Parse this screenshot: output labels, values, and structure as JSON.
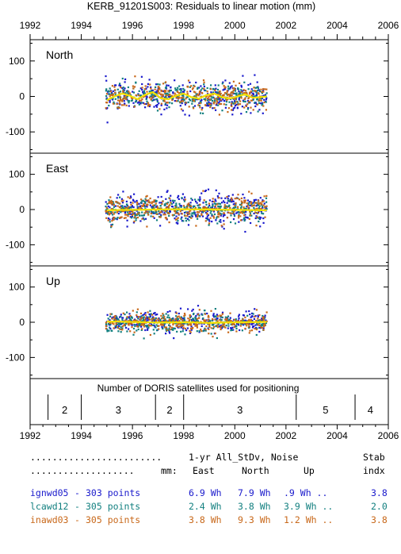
{
  "title": "KERB_91201S003: Residuals to linear motion (mm)",
  "x_ticks": [
    "1992",
    "1994",
    "1996",
    "1998",
    "2000",
    "2002",
    "2004",
    "2006"
  ],
  "chart_data": [
    {
      "type": "scatter",
      "panel": "North",
      "x_range": [
        1992,
        2006
      ],
      "ylim": [
        -160,
        160
      ],
      "y_ticks": [
        "100",
        "0",
        "-100"
      ],
      "series": [
        {
          "name": "ignwd05",
          "color": "#1a1acc",
          "x_range": [
            1994.95,
            2001.25
          ],
          "spread": 28
        },
        {
          "name": "lcawd12",
          "color": "#138080",
          "x_range": [
            1994.95,
            2001.25
          ],
          "spread": 22
        },
        {
          "name": "inawd03",
          "color": "#c8681a",
          "x_range": [
            1994.95,
            2001.25
          ],
          "spread": 24
        }
      ],
      "smooth": {
        "color": "#f2e200",
        "x": [
          1995.0,
          1995.3,
          1995.6,
          1995.9,
          1996.2,
          1996.5,
          1996.8,
          1997.1,
          1997.4,
          1997.7,
          1998.0,
          1998.3,
          1998.6,
          1998.9,
          1999.2,
          1999.5,
          1999.8,
          2000.1,
          2000.4,
          2000.7,
          2001.0,
          2001.25
        ],
        "y": [
          -10,
          0,
          8,
          2,
          -8,
          5,
          12,
          -5,
          -8,
          2,
          8,
          -2,
          -6,
          4,
          8,
          -2,
          -6,
          0,
          6,
          -4,
          -2,
          0
        ]
      }
    },
    {
      "type": "scatter",
      "panel": "East",
      "x_range": [
        1992,
        2006
      ],
      "ylim": [
        -160,
        160
      ],
      "y_ticks": [
        "100",
        "0",
        "-100"
      ],
      "series": [
        {
          "name": "ignwd05",
          "color": "#1a1acc",
          "x_range": [
            1994.95,
            2001.25
          ],
          "spread": 32
        },
        {
          "name": "lcawd12",
          "color": "#138080",
          "x_range": [
            1994.95,
            2001.25
          ],
          "spread": 20
        },
        {
          "name": "inawd03",
          "color": "#c8681a",
          "x_range": [
            1994.95,
            2001.25
          ],
          "spread": 26
        }
      ],
      "smooth": {
        "color": "#f2e200",
        "x": [
          1995.0,
          1996.0,
          1997.0,
          1998.0,
          1999.0,
          2000.0,
          2001.25
        ],
        "y": [
          -2,
          -1,
          0,
          1,
          0,
          -1,
          -2
        ]
      }
    },
    {
      "type": "scatter",
      "panel": "Up",
      "x_range": [
        1992,
        2006
      ],
      "ylim": [
        -160,
        160
      ],
      "y_ticks": [
        "100",
        "0",
        "-100"
      ],
      "series": [
        {
          "name": "ignwd05",
          "color": "#1a1acc",
          "x_range": [
            1994.95,
            2001.25
          ],
          "spread": 20
        },
        {
          "name": "lcawd12",
          "color": "#138080",
          "x_range": [
            1994.95,
            2001.25
          ],
          "spread": 18
        },
        {
          "name": "inawd03",
          "color": "#c8681a",
          "x_range": [
            1994.95,
            2001.25
          ],
          "spread": 18
        }
      ],
      "smooth": {
        "color": "#f2e200",
        "x": [
          1995.0,
          1996.0,
          1997.0,
          1998.0,
          1999.0,
          2000.0,
          2001.25
        ],
        "y": [
          2,
          1,
          -1,
          0,
          -2,
          0,
          1
        ]
      }
    },
    {
      "type": "table",
      "panel": "satellites",
      "label": "Number of DORIS satellites used for positioning",
      "dividers": [
        1992.7,
        1994.0,
        1996.9,
        1998.0,
        2002.4,
        2004.7
      ],
      "segments": [
        {
          "x": 1993.35,
          "value": "2"
        },
        {
          "x": 1995.45,
          "value": "3"
        },
        {
          "x": 1997.45,
          "value": "2"
        },
        {
          "x": 2000.2,
          "value": "3"
        },
        {
          "x": 2003.55,
          "value": "5"
        },
        {
          "x": 2005.3,
          "value": "4"
        }
      ]
    }
  ],
  "stats": {
    "header1": {
      "dots": "........................",
      "col": "1-yr All_StDv, Noise",
      "stab": "Stab"
    },
    "header2": {
      "dots": "...................",
      "mm": "mm:",
      "east": "East",
      "north": "North",
      "up": "Up",
      "indx": "indx"
    },
    "rows": [
      {
        "name": "ignwd05",
        "points": "303 points",
        "east": "6.9 Wh",
        "north": "7.9 Wh",
        "up": ".9 Wh ..",
        "stab": "3.8",
        "color": "#1a1acc"
      },
      {
        "name": "lcawd12",
        "points": "305 points",
        "east": "2.4 Wh",
        "north": "3.8 Wh",
        "up": "3.9 Wh ..",
        "stab": "2.0",
        "color": "#138080"
      },
      {
        "name": "inawd03",
        "points": "305 points",
        "east": "3.8 Wh",
        "north": "9.3 Wh",
        "up": "1.2 Wh ..",
        "stab": "3.8",
        "color": "#c8681a"
      }
    ]
  }
}
